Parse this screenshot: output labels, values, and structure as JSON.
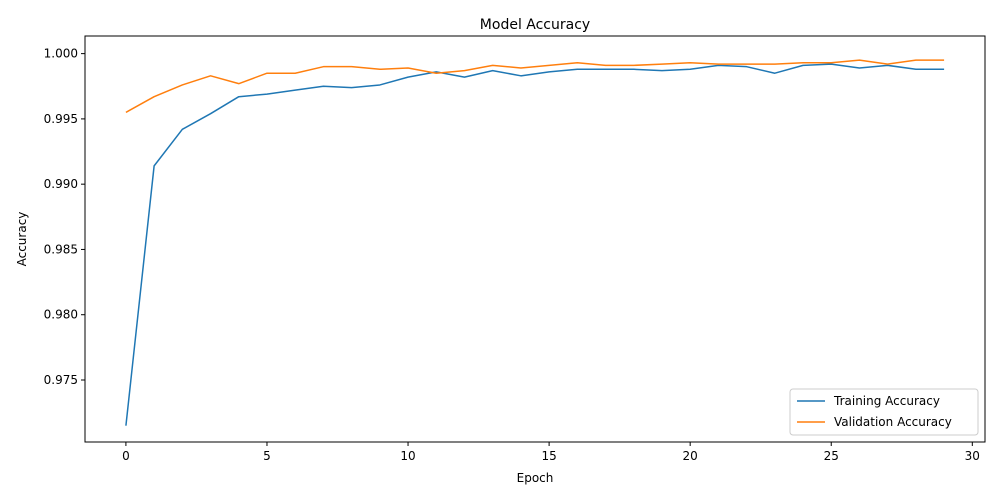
{
  "chart_data": {
    "type": "line",
    "title": "Model Accuracy",
    "xlabel": "Epoch",
    "ylabel": "Accuracy",
    "xlim": [
      -1.45,
      30.45
    ],
    "ylim": [
      0.97025,
      1.00135
    ],
    "xticks": [
      0,
      5,
      10,
      15,
      20,
      25,
      30
    ],
    "yticks": [
      0.975,
      0.98,
      0.985,
      0.99,
      0.995,
      1.0
    ],
    "ytick_labels": [
      "0.975",
      "0.980",
      "0.985",
      "0.990",
      "0.995",
      "1.000"
    ],
    "grid": false,
    "legend_position": "bottom-right",
    "x": [
      0,
      1,
      2,
      3,
      4,
      5,
      6,
      7,
      8,
      9,
      10,
      11,
      12,
      13,
      14,
      15,
      16,
      17,
      18,
      19,
      20,
      21,
      22,
      23,
      24,
      25,
      26,
      27,
      28,
      29
    ],
    "series": [
      {
        "name": "Training Accuracy",
        "color": "#1f77b4",
        "values": [
          0.9715,
          0.9914,
          0.9942,
          0.9954,
          0.9967,
          0.9969,
          0.9972,
          0.9975,
          0.9974,
          0.9976,
          0.9982,
          0.9986,
          0.9982,
          0.9987,
          0.9983,
          0.9986,
          0.9988,
          0.9988,
          0.9988,
          0.9987,
          0.9988,
          0.9991,
          0.999,
          0.9985,
          0.9991,
          0.9992,
          0.9989,
          0.9991,
          0.9988,
          0.9988
        ]
      },
      {
        "name": "Validation Accuracy",
        "color": "#ff7f0e",
        "values": [
          0.9955,
          0.9967,
          0.9976,
          0.9983,
          0.9977,
          0.9985,
          0.9985,
          0.999,
          0.999,
          0.9988,
          0.9989,
          0.9985,
          0.9987,
          0.9991,
          0.9989,
          0.9991,
          0.9993,
          0.9991,
          0.9991,
          0.9992,
          0.9993,
          0.9992,
          0.9992,
          0.9992,
          0.9993,
          0.9993,
          0.9995,
          0.9992,
          0.9995,
          0.9995
        ]
      }
    ]
  }
}
